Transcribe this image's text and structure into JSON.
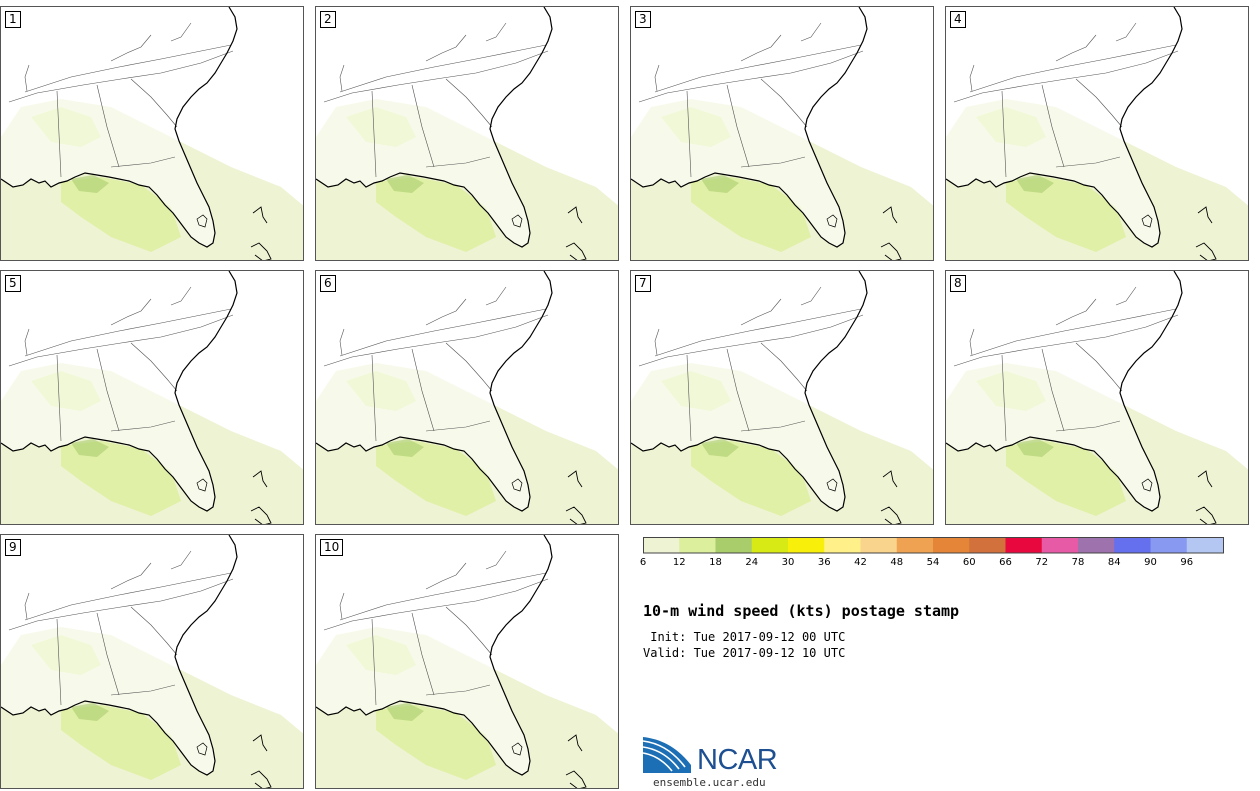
{
  "panels": [
    {
      "label": "1"
    },
    {
      "label": "2"
    },
    {
      "label": "3"
    },
    {
      "label": "4"
    },
    {
      "label": "5"
    },
    {
      "label": "6"
    },
    {
      "label": "7"
    },
    {
      "label": "8"
    },
    {
      "label": "9"
    },
    {
      "label": "10"
    }
  ],
  "colorbar": {
    "ticks": [
      "6",
      "12",
      "18",
      "24",
      "30",
      "36",
      "42",
      "48",
      "54",
      "60",
      "66",
      "72",
      "78",
      "84",
      "90",
      "96"
    ],
    "colors": [
      "#eef3d3",
      "#dcef9c",
      "#a9cd6a",
      "#d7ea16",
      "#f8ef0b",
      "#fff08a",
      "#f8d48c",
      "#efa352",
      "#e58538",
      "#d2713b",
      "#e8083e",
      "#e75ba6",
      "#9e73ad",
      "#6570ee",
      "#8899f2",
      "#b4c7f2"
    ]
  },
  "title": "10-m wind speed (kts) postage stamp",
  "init_line": " Init: Tue 2017-09-12 00 UTC",
  "valid_line": "Valid: Tue 2017-09-12 10 UTC",
  "logo": {
    "name": "NCAR",
    "url": "ensemble.ucar.edu"
  }
}
